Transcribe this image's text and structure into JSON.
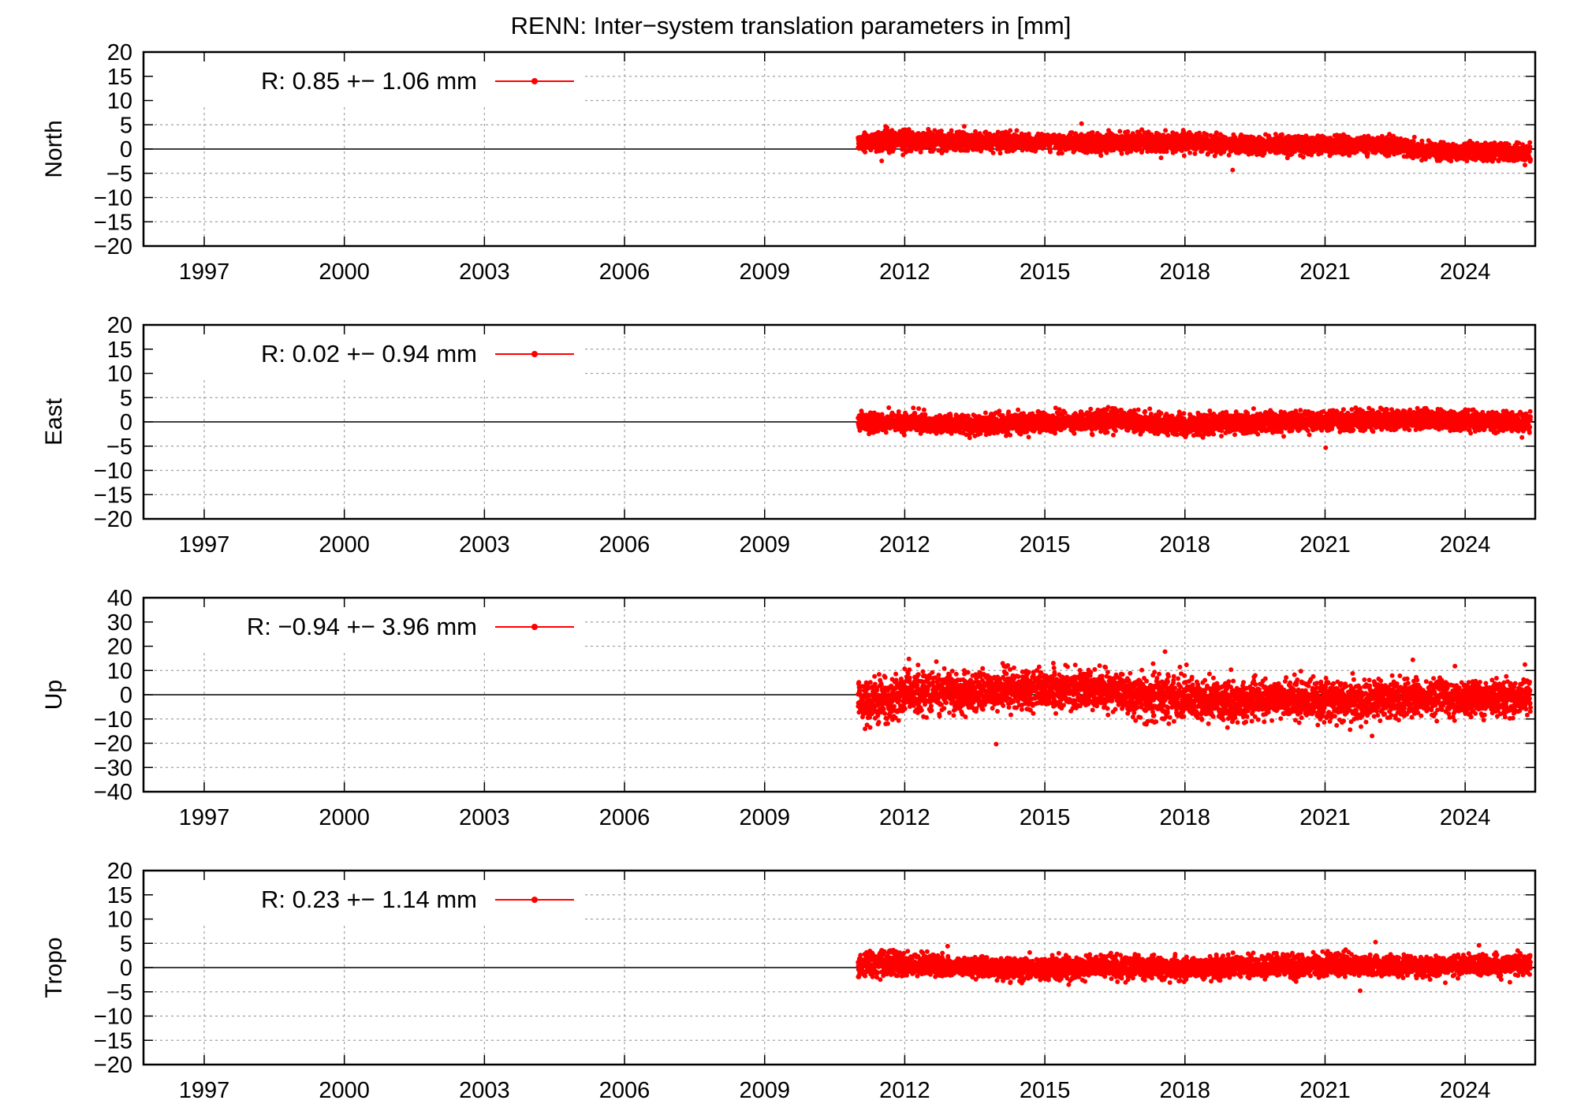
{
  "title": "RENN: Inter−system translation parameters in [mm]",
  "colors": {
    "series": "#ff0000",
    "frame": "#000000",
    "grid": "#a0a0a0",
    "zero": "#000000"
  },
  "chart_data": [
    {
      "type": "scatter",
      "title": "RENN: Inter−system translation parameters in [mm]",
      "ylabel": "North",
      "legend": "R:   0.85 +− 1.06 mm",
      "legend_position": "top-left",
      "xlim": [
        1995.7,
        2025.5
      ],
      "ylim": [
        -20,
        20
      ],
      "xticks": [
        "1997",
        "2000",
        "2003",
        "2006",
        "2009",
        "2012",
        "2015",
        "2018",
        "2021",
        "2024"
      ],
      "yticks": [
        "20",
        "15",
        "10",
        "5",
        "0",
        "−5",
        "−10",
        "−15",
        "−20"
      ],
      "grid": true,
      "data_start": 2011.0,
      "data_end": 2025.4,
      "series": [
        {
          "x": [
            2011.0,
            2011.5,
            2012.0,
            2012.5,
            2013.0,
            2014.0,
            2015.0,
            2016.0,
            2016.5,
            2017.0,
            2018.0,
            2019.0,
            2020.0,
            2021.0,
            2022.0,
            2022.6,
            2023.0,
            2024.0,
            2025.0,
            2025.4
          ],
          "y": [
            1.2,
            1.8,
            1.6,
            1.7,
            1.6,
            1.5,
            1.4,
            1.4,
            1.5,
            1.4,
            1.3,
            0.9,
            0.8,
            0.8,
            0.9,
            0.8,
            -0.3,
            -0.5,
            -0.6,
            -0.8
          ],
          "spread": [
            1.0,
            1.0,
            1.0,
            1.0,
            1.0,
            0.9,
            0.9,
            0.9,
            1.0,
            1.0,
            1.0,
            0.9,
            0.9,
            0.9,
            0.9,
            0.9,
            0.9,
            0.9,
            0.9,
            0.9
          ]
        }
      ]
    },
    {
      "type": "scatter",
      "ylabel": "East",
      "legend": "R:   0.02 +− 0.94 mm",
      "legend_position": "top-left",
      "xlim": [
        1995.7,
        2025.5
      ],
      "ylim": [
        -20,
        20
      ],
      "xticks": [
        "1997",
        "2000",
        "2003",
        "2006",
        "2009",
        "2012",
        "2015",
        "2018",
        "2021",
        "2024"
      ],
      "yticks": [
        "20",
        "15",
        "10",
        "5",
        "0",
        "−5",
        "−10",
        "−15",
        "−20"
      ],
      "grid": true,
      "data_start": 2011.0,
      "data_end": 2025.4,
      "series": [
        {
          "x": [
            2011.0,
            2012.0,
            2013.0,
            2014.0,
            2015.0,
            2016.0,
            2016.5,
            2017.0,
            2018.0,
            2019.0,
            2020.0,
            2021.0,
            2022.0,
            2023.0,
            2024.0,
            2025.0,
            2025.4
          ],
          "y": [
            -0.3,
            -0.2,
            -0.4,
            -0.4,
            -0.2,
            0.2,
            0.3,
            -0.3,
            -0.6,
            -0.3,
            0.1,
            0.2,
            0.3,
            0.5,
            0.1,
            0.1,
            0.0
          ],
          "spread": [
            1.0,
            1.0,
            1.0,
            1.0,
            1.0,
            1.0,
            1.1,
            1.0,
            1.1,
            1.0,
            1.0,
            1.0,
            1.0,
            1.0,
            1.0,
            1.0,
            1.0
          ]
        }
      ]
    },
    {
      "type": "scatter",
      "ylabel": "Up",
      "legend": "R:  −0.94 +− 3.96 mm",
      "legend_position": "top-left",
      "xlim": [
        1995.7,
        2025.5
      ],
      "ylim": [
        -40,
        40
      ],
      "xticks": [
        "1997",
        "2000",
        "2003",
        "2006",
        "2009",
        "2012",
        "2015",
        "2018",
        "2021",
        "2024"
      ],
      "yticks": [
        "40",
        "30",
        "20",
        "10",
        "0",
        "−10",
        "−20",
        "−30",
        "−40"
      ],
      "grid": true,
      "data_start": 2011.0,
      "data_end": 2025.4,
      "series": [
        {
          "x": [
            2011.0,
            2011.5,
            2012.0,
            2013.0,
            2014.0,
            2015.0,
            2016.0,
            2016.5,
            2017.0,
            2018.0,
            2019.0,
            2020.0,
            2021.0,
            2022.0,
            2023.0,
            2024.0,
            2025.0,
            2025.4
          ],
          "y": [
            -2.0,
            -4.0,
            0.5,
            1.0,
            2.0,
            2.0,
            2.5,
            1.5,
            -1.0,
            -2.0,
            -3.0,
            -2.0,
            -2.0,
            -2.5,
            -1.0,
            -1.5,
            -1.5,
            -1.5
          ],
          "spread": [
            4.0,
            4.5,
            4.0,
            4.0,
            4.0,
            4.0,
            4.0,
            4.0,
            4.0,
            4.0,
            4.0,
            4.0,
            4.0,
            4.0,
            3.5,
            3.5,
            3.5,
            3.5
          ]
        }
      ]
    },
    {
      "type": "scatter",
      "ylabel": "Tropo",
      "legend": "R:   0.23 +− 1.14 mm",
      "legend_position": "top-left",
      "xlim": [
        1995.7,
        2025.5
      ],
      "ylim": [
        -20,
        20
      ],
      "xticks": [
        "1997",
        "2000",
        "2003",
        "2006",
        "2009",
        "2012",
        "2015",
        "2018",
        "2021",
        "2024"
      ],
      "yticks": [
        "20",
        "15",
        "10",
        "5",
        "0",
        "−5",
        "−10",
        "−15",
        "−20"
      ],
      "grid": true,
      "data_start": 2011.0,
      "data_end": 2025.4,
      "series": [
        {
          "x": [
            2011.0,
            2011.5,
            2012.0,
            2013.0,
            2014.0,
            2015.0,
            2016.0,
            2016.5,
            2017.0,
            2018.0,
            2019.0,
            2020.0,
            2021.0,
            2022.0,
            2023.0,
            2024.0,
            2025.0,
            2025.4
          ],
          "y": [
            0.5,
            1.0,
            0.5,
            0.3,
            0.0,
            -0.3,
            0.0,
            0.2,
            0.0,
            -0.3,
            0.2,
            0.4,
            0.5,
            0.4,
            0.3,
            0.4,
            0.5,
            0.5
          ],
          "spread": [
            1.2,
            1.4,
            1.2,
            1.1,
            1.1,
            1.1,
            1.1,
            1.1,
            1.1,
            1.1,
            1.1,
            1.1,
            1.1,
            1.1,
            1.0,
            1.0,
            1.0,
            1.0
          ]
        }
      ]
    }
  ]
}
